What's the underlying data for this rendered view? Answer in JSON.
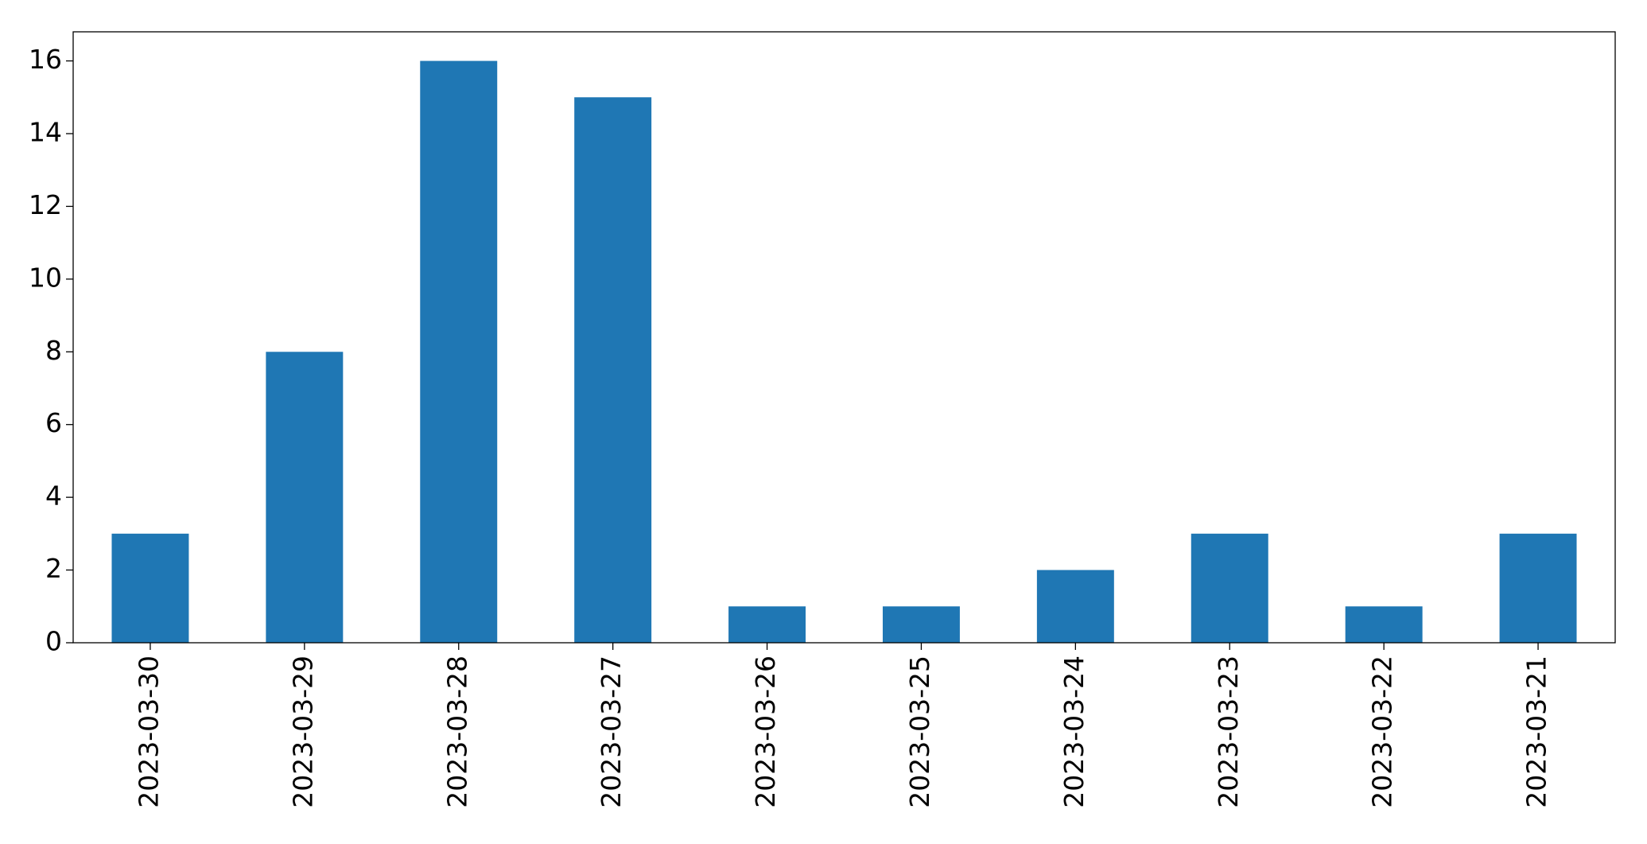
{
  "chart_data": {
    "type": "bar",
    "categories": [
      "2023-03-30",
      "2023-03-29",
      "2023-03-28",
      "2023-03-27",
      "2023-03-26",
      "2023-03-25",
      "2023-03-24",
      "2023-03-23",
      "2023-03-22",
      "2023-03-21"
    ],
    "values": [
      3,
      8,
      16,
      15,
      1,
      1,
      2,
      3,
      1,
      3
    ],
    "color": "#1f77b4",
    "ylim": [
      0,
      16.8
    ],
    "yticks": [
      0,
      2,
      4,
      6,
      8,
      10,
      12,
      14,
      16
    ],
    "grid": false
  }
}
